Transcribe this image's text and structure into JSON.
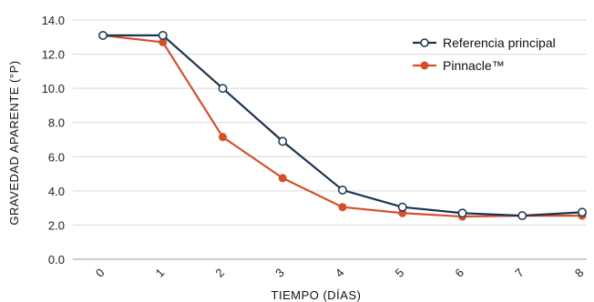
{
  "chart_data": {
    "type": "line",
    "xlabel": "TIEMPO (DÍAS)",
    "ylabel": "GRAVEDAD APARENTE (°P)",
    "categories": [
      "0",
      "1",
      "2",
      "3",
      "4",
      "5",
      "6",
      "7",
      "8"
    ],
    "ylim": [
      0,
      14
    ],
    "yticks": [
      "0.0",
      "2.0",
      "4.0",
      "6.0",
      "8.0",
      "10.0",
      "12.0",
      "14.0"
    ],
    "grid": "horizontal",
    "legend_position": "top-right",
    "series": [
      {
        "name": "Referencia principal",
        "color": "#1b3550",
        "marker": "open-circle",
        "values": [
          13.1,
          13.1,
          10.0,
          6.9,
          4.05,
          3.05,
          2.7,
          2.55,
          2.75
        ]
      },
      {
        "name": "Pinnacle™",
        "color": "#d4502a",
        "marker": "filled-circle",
        "values": [
          13.1,
          12.7,
          7.15,
          4.75,
          3.05,
          2.7,
          2.5,
          2.55,
          2.55
        ]
      }
    ]
  }
}
